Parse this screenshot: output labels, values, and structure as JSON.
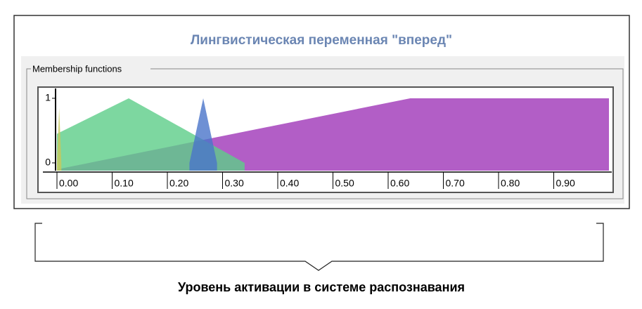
{
  "chart_data": {
    "type": "area",
    "title": "Лингвистическая переменная \"вперед\"",
    "group_label": "Membership functions",
    "caption": "Уровень активации в системе распознавания",
    "xlim": [
      0,
      1
    ],
    "ylim": [
      -0.12,
      1.13
    ],
    "xticks": [
      {
        "value": 0,
        "label": "0.00"
      },
      {
        "value": 0.1,
        "label": "0.10"
      },
      {
        "value": 0.2,
        "label": "0.20"
      },
      {
        "value": 0.3,
        "label": "0.30"
      },
      {
        "value": 0.4,
        "label": "0.40"
      },
      {
        "value": 0.5,
        "label": "0.50"
      },
      {
        "value": 0.6,
        "label": "0.60"
      },
      {
        "value": 0.7,
        "label": "0.70"
      },
      {
        "value": 0.8,
        "label": "0.80"
      },
      {
        "value": 0.9,
        "label": "0.90"
      }
    ],
    "yticks": [
      0,
      1
    ],
    "series": [
      {
        "color": "#b25ec6",
        "x": [
          0,
          0.64,
          1
        ],
        "values": [
          -0.1,
          1,
          1
        ]
      },
      {
        "color": "#5ccd88",
        "x": [
          0,
          0.13,
          0.34
        ],
        "values": [
          0.45,
          1,
          0
        ]
      },
      {
        "color": "#4a74c9",
        "x": [
          0.24,
          0.265,
          0.29
        ],
        "values": [
          0,
          1,
          0
        ]
      },
      {
        "color": "#c8c85a",
        "x": [
          0,
          0.004,
          0.008
        ],
        "values": [
          0,
          0.85,
          0
        ]
      }
    ]
  }
}
